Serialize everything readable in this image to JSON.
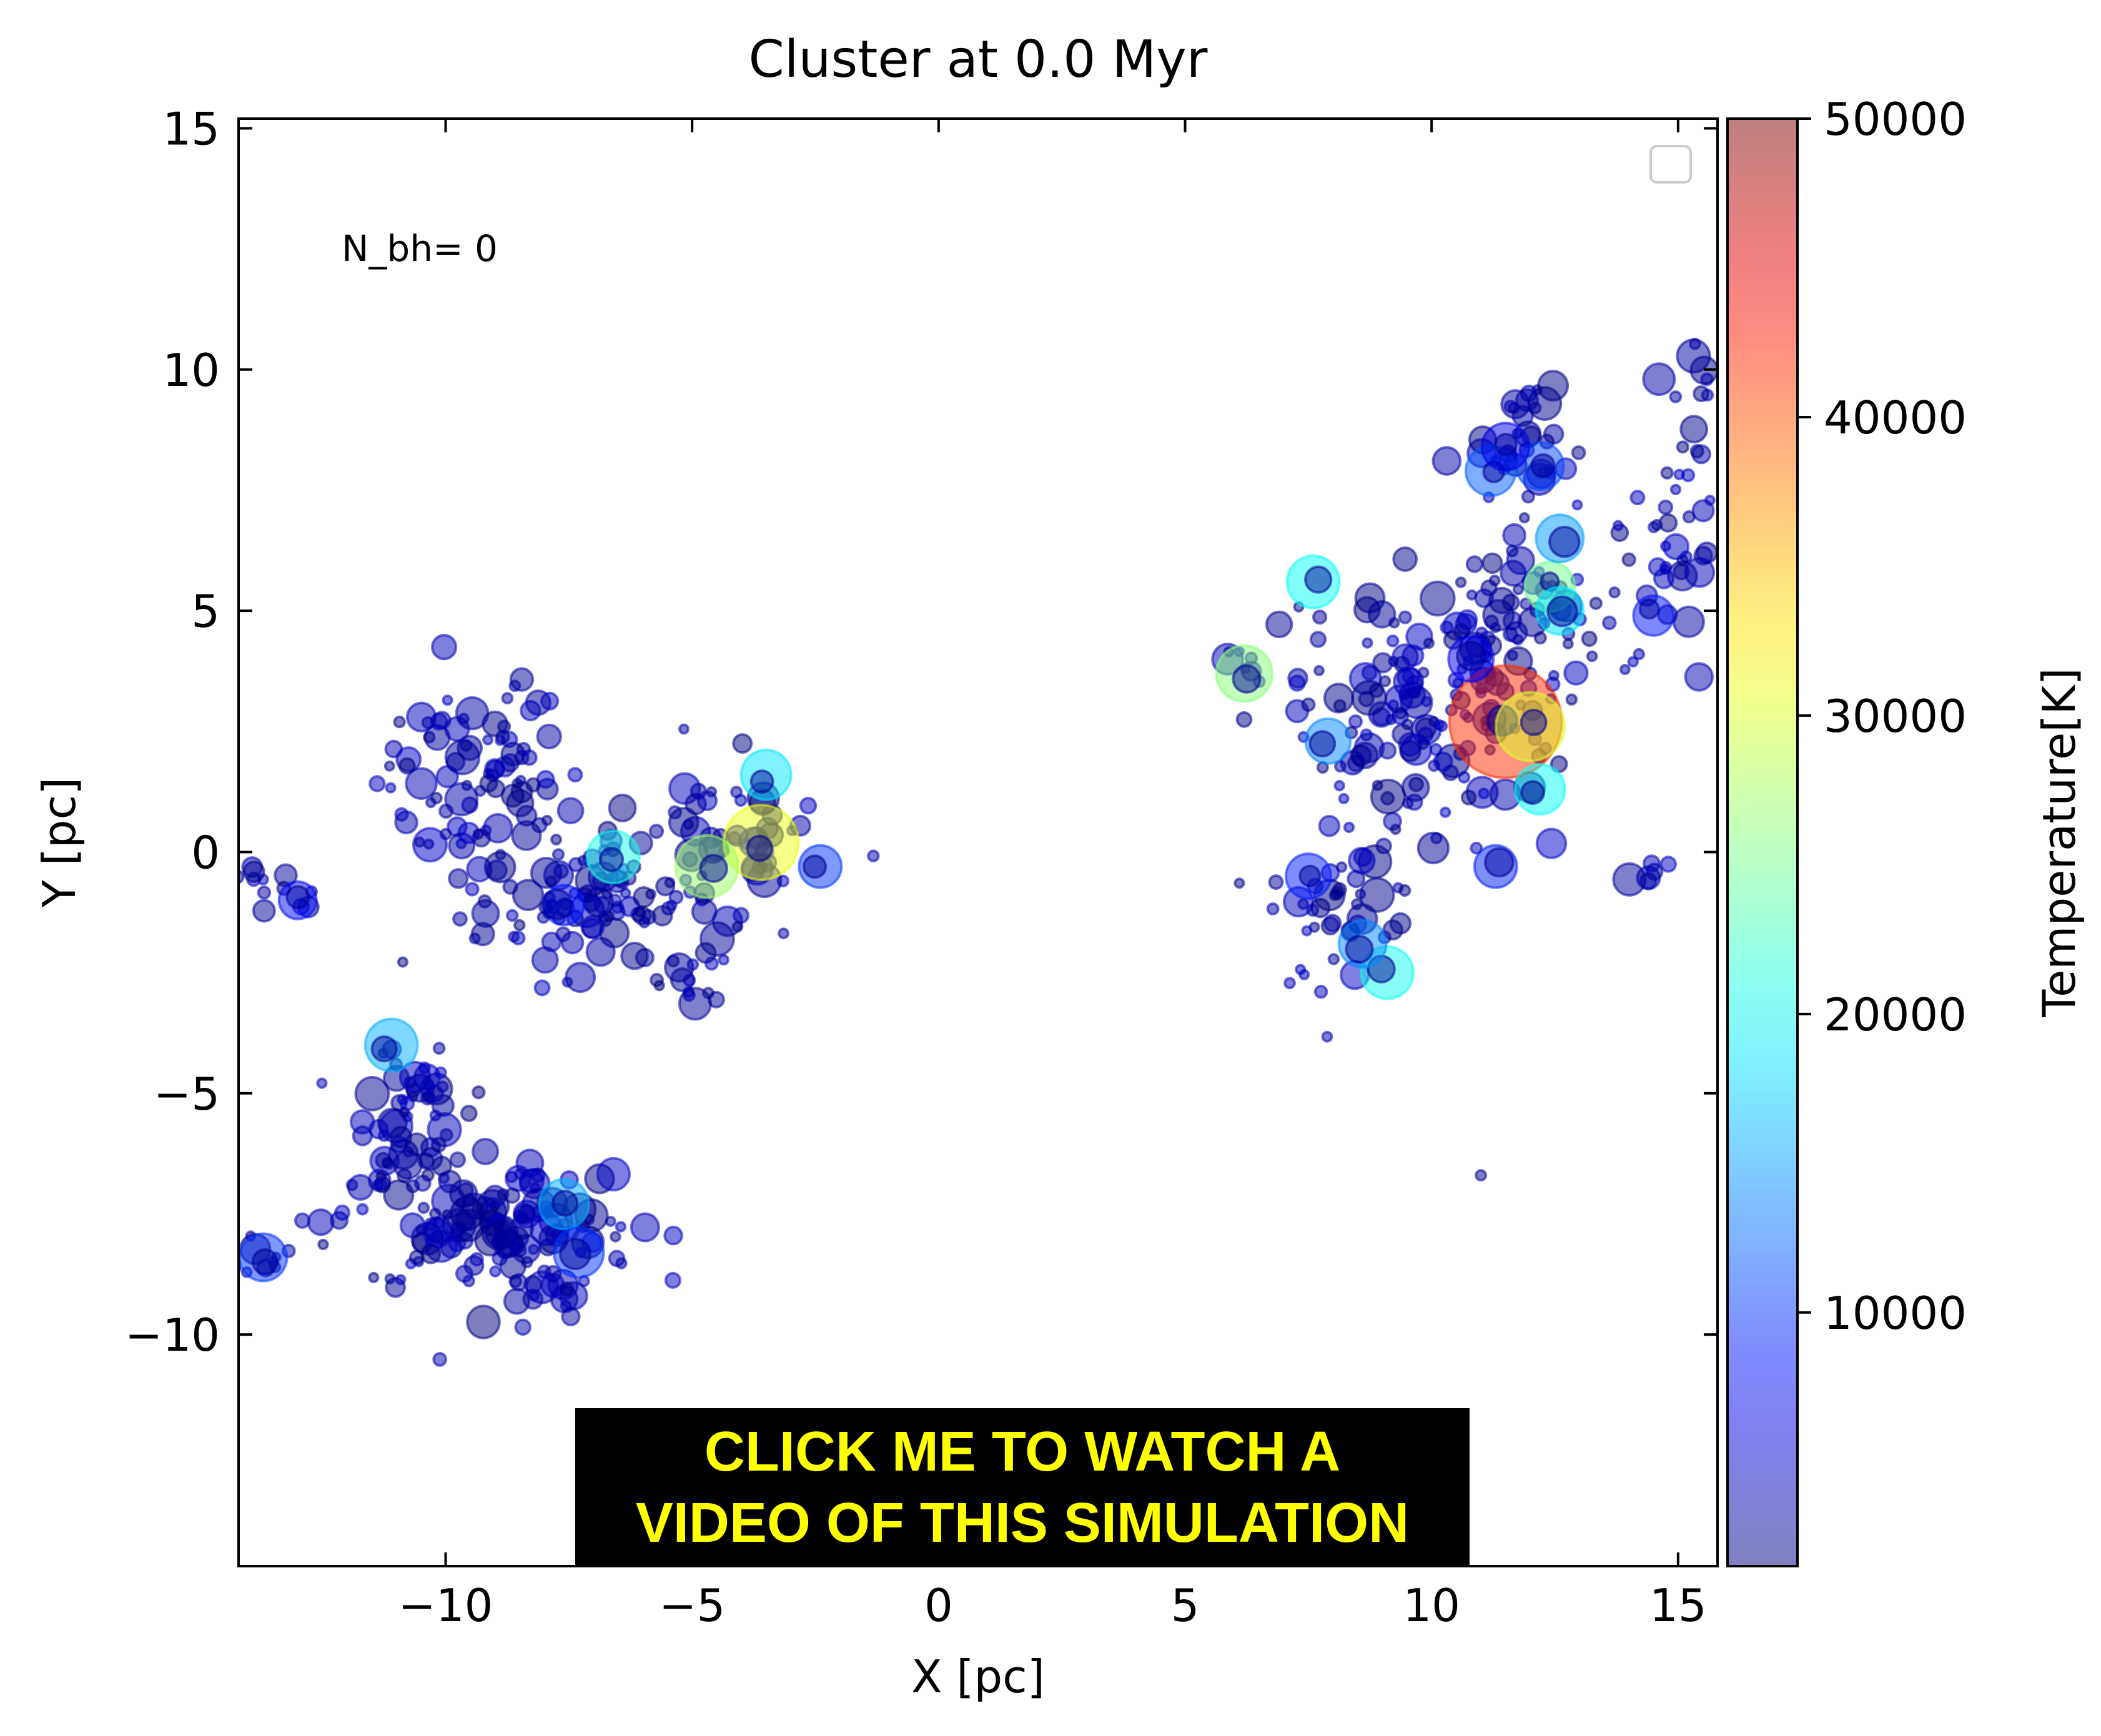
{
  "chart_data": {
    "type": "scatter",
    "title": "Cluster at 0.0 Myr",
    "xlabel": "X [pc]",
    "ylabel": "Y [pc]",
    "xlim": [
      -14.2,
      15.8
    ],
    "ylim": [
      -14.8,
      15.2
    ],
    "xticks": [
      -10,
      -5,
      0,
      5,
      10,
      15
    ],
    "yticks": [
      -10,
      -5,
      0,
      5,
      10,
      15
    ],
    "xtick_labels": [
      "−10",
      "−5",
      "0",
      "5",
      "10",
      "15"
    ],
    "ytick_labels": [
      "−10",
      "−5",
      "0",
      "5",
      "10",
      "15"
    ],
    "annotation": "N_bh= 0",
    "grid": false,
    "legend": "top-right (empty)",
    "colorbar": {
      "label": "Temperature[K]",
      "range": [
        1500,
        50000
      ],
      "ticks": [
        10000,
        20000,
        30000,
        40000,
        50000
      ],
      "tick_labels": [
        "10000",
        "20000",
        "30000",
        "40000",
        "50000"
      ],
      "colormap": "jet",
      "alpha": 0.5
    },
    "groups": [
      {
        "name": "left-edge",
        "cx": -13.8,
        "cy": -0.6,
        "sx": 0.4,
        "sy": 0.3,
        "n": 8
      },
      {
        "name": "left-pair",
        "cx": -13.0,
        "cy": -1.0,
        "sx": 0.25,
        "sy": 0.2,
        "n": 4
      },
      {
        "name": "upper-left-a",
        "cx": -9.4,
        "cy": 1.5,
        "sx": 1.0,
        "sy": 1.1,
        "n": 90
      },
      {
        "name": "upper-left-b",
        "cx": -6.8,
        "cy": -1.2,
        "sx": 1.2,
        "sy": 0.7,
        "n": 85
      },
      {
        "name": "upper-left-c",
        "cx": -4.6,
        "cy": 0.3,
        "sx": 1.0,
        "sy": 1.0,
        "n": 60
      },
      {
        "name": "upper-left-d",
        "cx": -5.0,
        "cy": -2.7,
        "sx": 0.4,
        "sy": 0.3,
        "n": 12
      },
      {
        "name": "lower-left-a",
        "cx": -10.8,
        "cy": -5.6,
        "sx": 0.6,
        "sy": 0.8,
        "n": 60
      },
      {
        "name": "lower-left-b",
        "cx": -9.2,
        "cy": -7.7,
        "sx": 1.6,
        "sy": 0.7,
        "n": 140
      },
      {
        "name": "lower-left-c",
        "cx": -8.0,
        "cy": -9.2,
        "sx": 0.5,
        "sy": 0.3,
        "n": 10
      },
      {
        "name": "lower-left-d",
        "cx": -13.5,
        "cy": -8.2,
        "sx": 0.4,
        "sy": 0.3,
        "n": 10
      },
      {
        "name": "right-a",
        "cx": 9.8,
        "cy": 3.0,
        "sx": 1.3,
        "sy": 1.3,
        "n": 150
      },
      {
        "name": "right-b",
        "cx": 8.2,
        "cy": -1.0,
        "sx": 0.7,
        "sy": 0.9,
        "n": 45
      },
      {
        "name": "right-c",
        "cx": 12.0,
        "cy": 8.3,
        "sx": 0.6,
        "sy": 0.8,
        "n": 35
      },
      {
        "name": "right-d",
        "cx": 12.0,
        "cy": 4.8,
        "sx": 0.8,
        "sy": 0.8,
        "n": 50
      },
      {
        "name": "right-e",
        "cx": 14.9,
        "cy": 6.5,
        "sx": 0.5,
        "sy": 1.2,
        "n": 40
      },
      {
        "name": "right-f",
        "cx": 15.4,
        "cy": 9.8,
        "sx": 0.3,
        "sy": 0.5,
        "n": 8
      },
      {
        "name": "right-g",
        "cx": 14.1,
        "cy": -0.3,
        "sx": 0.4,
        "sy": 0.3,
        "n": 6
      },
      {
        "name": "right-h",
        "cx": 6.2,
        "cy": 3.7,
        "sx": 0.3,
        "sy": 0.4,
        "n": 8
      }
    ],
    "hot_stars": [
      {
        "x": 11.5,
        "y": 2.7,
        "size": 90,
        "temperature": 42000
      },
      {
        "x": 12.0,
        "y": 2.6,
        "size": 55,
        "temperature": 30000
      },
      {
        "x": -3.6,
        "y": 0.2,
        "size": 60,
        "temperature": 31000
      },
      {
        "x": -4.7,
        "y": -0.3,
        "size": 50,
        "temperature": 27000
      },
      {
        "x": 6.2,
        "y": 3.7,
        "size": 45,
        "temperature": 26000
      },
      {
        "x": 12.4,
        "y": 5.5,
        "size": 40,
        "temperature": 25000
      },
      {
        "x": -6.6,
        "y": -0.1,
        "size": 42,
        "temperature": 21000
      },
      {
        "x": 9.1,
        "y": -2.5,
        "size": 42,
        "temperature": 20500
      },
      {
        "x": 7.6,
        "y": 5.6,
        "size": 42,
        "temperature": 20000
      },
      {
        "x": 12.2,
        "y": 1.3,
        "size": 40,
        "temperature": 20000
      },
      {
        "x": -3.5,
        "y": 1.6,
        "size": 40,
        "temperature": 18500
      },
      {
        "x": 12.6,
        "y": 5.0,
        "size": 38,
        "temperature": 18500
      },
      {
        "x": -11.1,
        "y": -4.0,
        "size": 42,
        "temperature": 16000
      },
      {
        "x": -7.6,
        "y": -7.3,
        "size": 40,
        "temperature": 16000
      },
      {
        "x": 12.6,
        "y": 6.5,
        "size": 38,
        "temperature": 15000
      },
      {
        "x": 8.6,
        "y": -1.9,
        "size": 38,
        "temperature": 14000
      },
      {
        "x": 7.9,
        "y": 2.3,
        "size": 36,
        "temperature": 14000
      },
      {
        "x": 11.2,
        "y": 7.9,
        "size": 40,
        "temperature": 12000
      },
      {
        "x": 12.2,
        "y": 8.0,
        "size": 38,
        "temperature": 11000
      },
      {
        "x": -7.3,
        "y": -8.3,
        "size": 40,
        "temperature": 10000
      },
      {
        "x": -13.7,
        "y": -8.4,
        "size": 38,
        "temperature": 10000
      },
      {
        "x": -2.4,
        "y": -0.3,
        "size": 34,
        "temperature": 10000
      },
      {
        "x": 7.5,
        "y": -0.5,
        "size": 36,
        "temperature": 9000
      },
      {
        "x": 11.3,
        "y": -0.3,
        "size": 34,
        "temperature": 9000
      },
      {
        "x": -7.6,
        "y": -1.1,
        "size": 32,
        "temperature": 8500
      },
      {
        "x": 14.5,
        "y": 4.9,
        "size": 32,
        "temperature": 8500
      },
      {
        "x": -13.0,
        "y": -1.0,
        "size": 30,
        "temperature": 8000
      },
      {
        "x": 11.5,
        "y": 8.4,
        "size": 38,
        "temperature": 6500
      },
      {
        "x": 10.8,
        "y": 4.0,
        "size": 36,
        "temperature": 7000
      }
    ],
    "isolated_stars": [
      {
        "x": 11.0,
        "y": -6.7,
        "size": 16,
        "temperature": 2500
      }
    ]
  },
  "banner": {
    "line1": "CLICK ME TO WATCH A",
    "line2": "VIDEO OF THIS SIMULATION"
  },
  "colors": {
    "background": "#ffffff",
    "axis": "#000000",
    "banner_bg": "#000000",
    "banner_text": "#ffff00",
    "cool_star": "#8b0000"
  }
}
